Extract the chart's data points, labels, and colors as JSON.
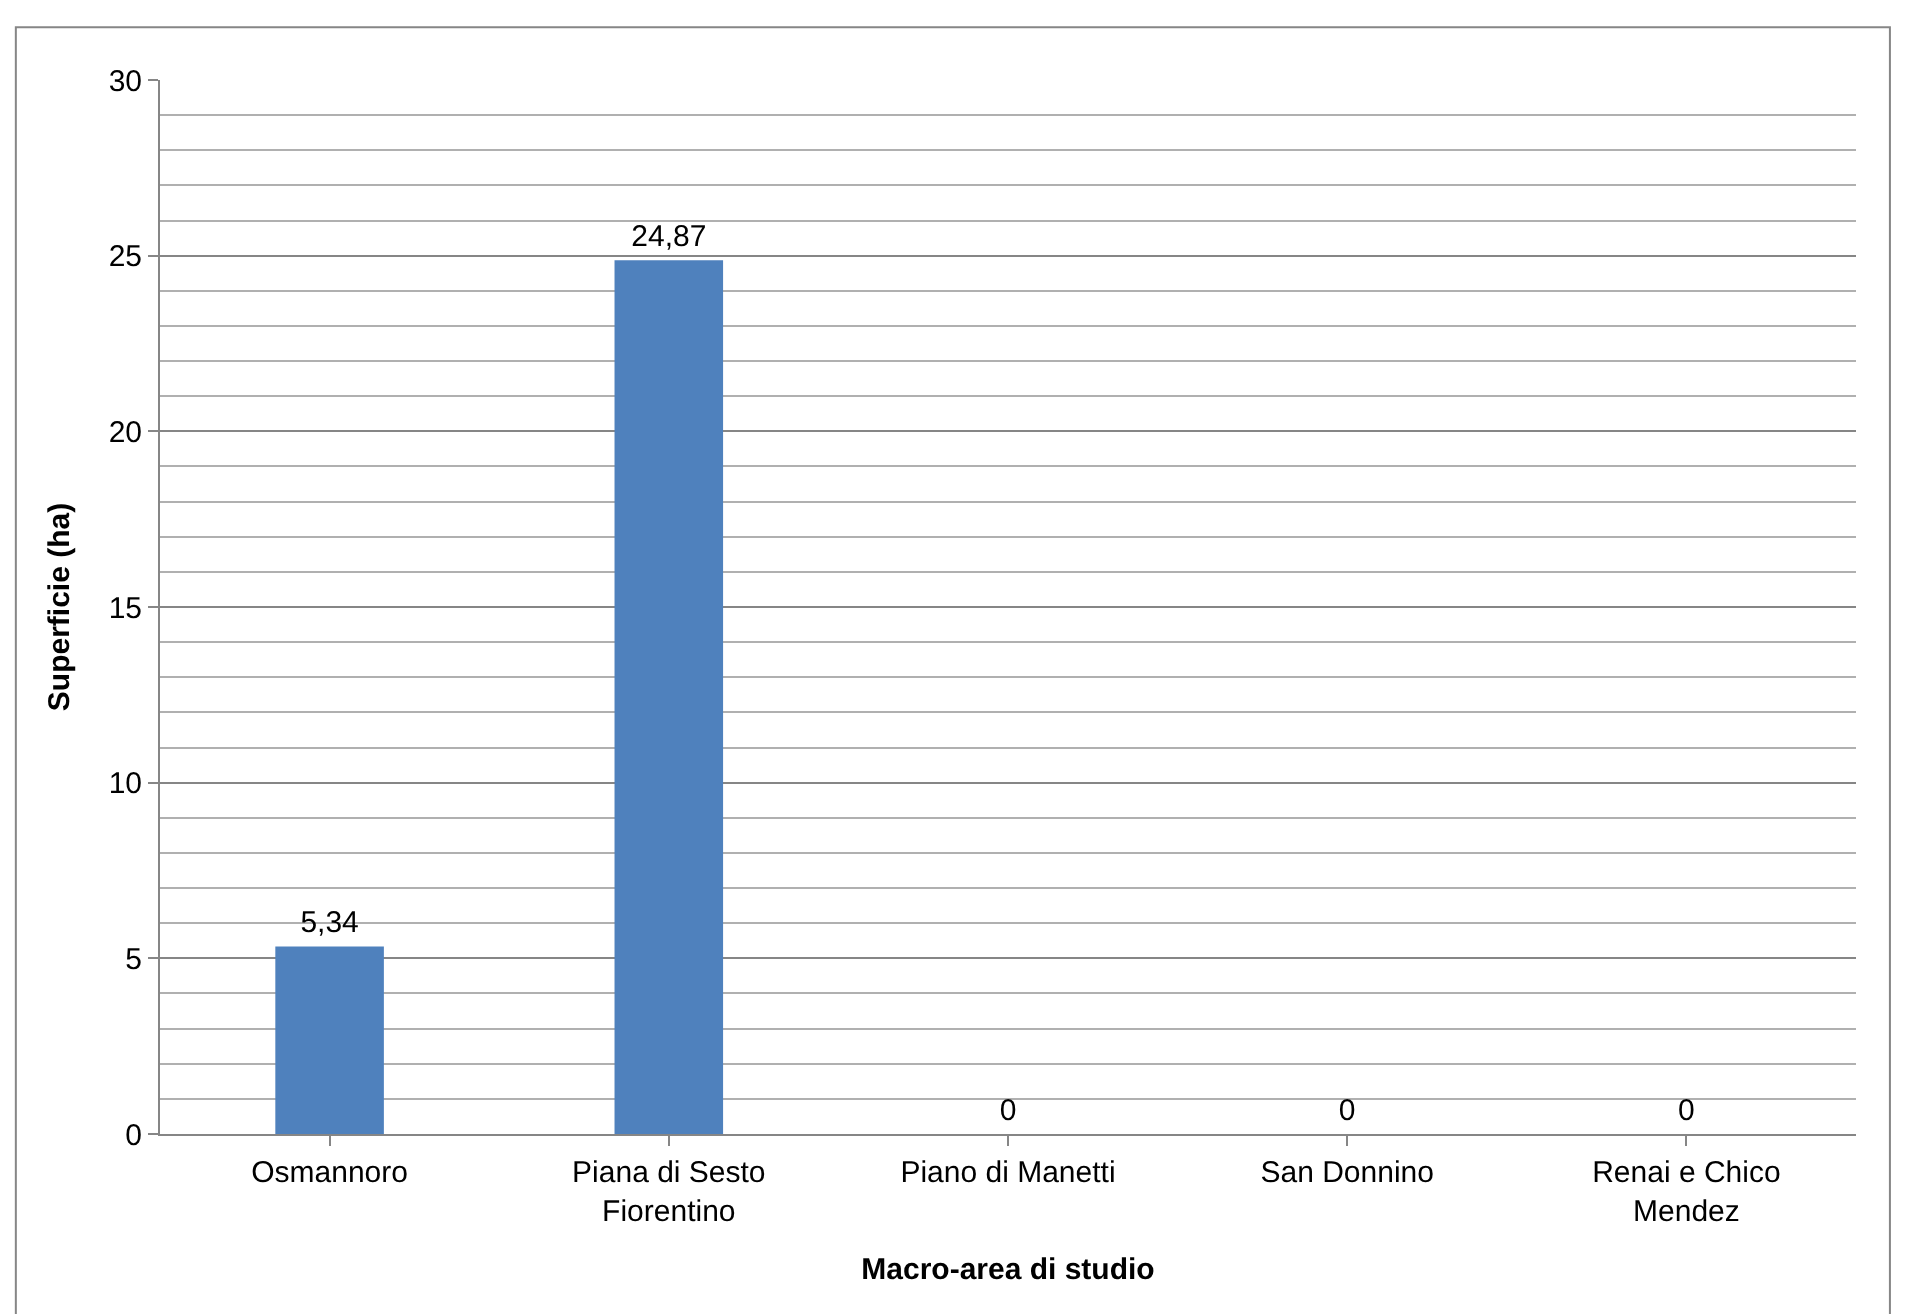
{
  "chart_data": {
    "type": "bar",
    "xlabel": "Macro-area di studio",
    "ylabel": "Superficie (ha)",
    "categories": [
      "Osmannoro",
      "Piana di Sesto Fiorentino",
      "Piano di Manetti",
      "San Donnino",
      "Renai e Chico Mendez"
    ],
    "values": [
      5.34,
      24.87,
      0,
      0,
      0
    ],
    "value_labels": [
      "5,34",
      "24,87",
      "0",
      "0",
      "0"
    ],
    "color": "#4f81bd",
    "ylim": [
      0,
      30
    ],
    "yticks": [
      0,
      5,
      10,
      15,
      20,
      25,
      30
    ],
    "grid": "y"
  }
}
